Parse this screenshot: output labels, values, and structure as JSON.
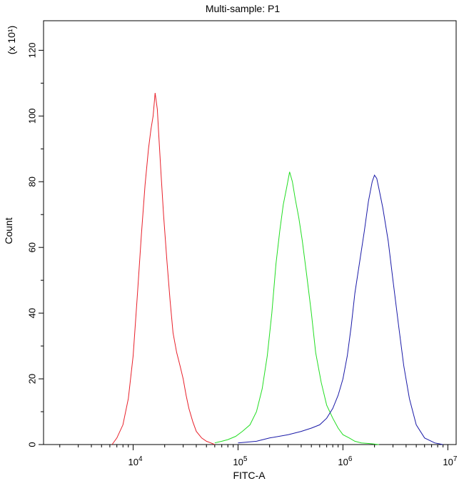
{
  "chart_data": {
    "type": "line",
    "title": "Multi-sample: P1",
    "xlabel": "FITC-A",
    "ylabel": "Count",
    "y_multiplier_label": "(x 10¹)",
    "xscale": "log",
    "xlim": [
      1400,
      12000000
    ],
    "ylim": [
      0,
      129
    ],
    "grid": false,
    "legend": "none",
    "x_ticks": [
      {
        "value": 10000,
        "base": "10",
        "exp": "4"
      },
      {
        "value": 100000,
        "base": "10",
        "exp": "5"
      },
      {
        "value": 1000000,
        "base": "10",
        "exp": "6"
      },
      {
        "value": 10000000,
        "base": "10",
        "exp": "7"
      }
    ],
    "y_ticks": [
      {
        "value": 0,
        "label": "0"
      },
      {
        "value": 20,
        "label": "20"
      },
      {
        "value": 40,
        "label": "40"
      },
      {
        "value": 60,
        "label": "60"
      },
      {
        "value": 80,
        "label": "80"
      },
      {
        "value": 100,
        "label": "100"
      },
      {
        "value": 120,
        "label": "120"
      }
    ],
    "series": [
      {
        "color": "#e8202a",
        "x": [
          6300,
          7000,
          8000,
          9000,
          10000,
          11000,
          12000,
          13000,
          14000,
          14800,
          15500,
          16200,
          17000,
          17500,
          18500,
          19500,
          21000,
          22500,
          24000,
          26000,
          28000,
          30000,
          32000,
          34000,
          37000,
          40000,
          45000,
          50000,
          55000,
          60000
        ],
        "y": [
          0,
          2,
          6,
          14,
          27,
          46,
          64,
          79,
          90,
          96,
          100,
          107,
          102,
          95,
          82,
          70,
          56,
          44,
          34,
          28,
          24,
          20,
          15,
          11,
          7,
          4,
          2,
          1,
          0.5,
          0
        ]
      },
      {
        "color": "#22dd22",
        "x": [
          60000,
          70000,
          80000,
          95000,
          110000,
          130000,
          150000,
          170000,
          190000,
          210000,
          230000,
          250000,
          270000,
          290000,
          310000,
          330000,
          350000,
          380000,
          410000,
          450000,
          500000,
          550000,
          620000,
          700000,
          800000,
          900000,
          1000000,
          1150000,
          1300000,
          1500000,
          1800000,
          2200000
        ],
        "y": [
          0.5,
          1,
          1.5,
          2.5,
          4,
          6,
          10,
          17,
          27,
          40,
          55,
          65,
          73,
          78,
          83,
          80,
          75,
          69,
          62,
          52,
          40,
          28,
          19,
          12,
          8,
          5,
          3,
          2,
          1,
          0.5,
          0.3,
          0
        ]
      },
      {
        "color": "#1a1aa8",
        "x": [
          100000,
          150000,
          200000,
          300000,
          400000,
          500000,
          600000,
          700000,
          800000,
          900000,
          1000000,
          1100000,
          1200000,
          1300000,
          1450000,
          1600000,
          1750000,
          1900000,
          2000000,
          2100000,
          2200000,
          2400000,
          2700000,
          3000000,
          3400000,
          3800000,
          4300000,
          5000000,
          6000000,
          7500000,
          9000000
        ],
        "y": [
          0.5,
          1,
          2,
          3,
          4,
          5,
          6,
          8,
          11,
          15,
          20,
          27,
          36,
          46,
          56,
          65,
          74,
          80,
          82,
          81,
          78,
          72,
          62,
          50,
          36,
          24,
          14,
          6,
          2,
          0.5,
          0
        ]
      }
    ]
  }
}
